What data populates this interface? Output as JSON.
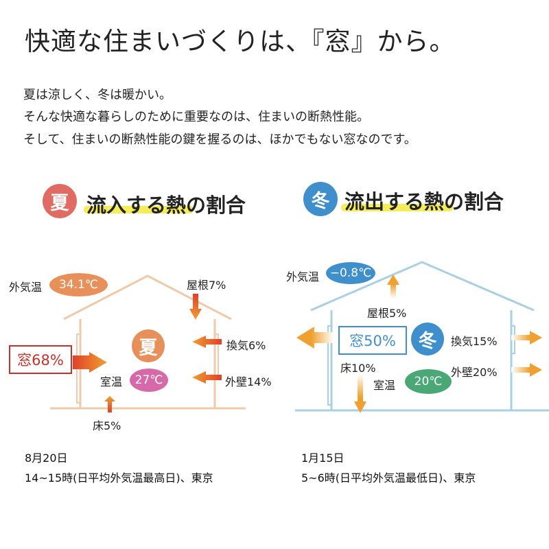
{
  "title": "快適な住まいづくりは、『窓』から。",
  "intro": [
    "夏は涼しく、冬は暖かい。",
    "そんな快適な暮らしのために重要なのは、住まいの断熱性能。",
    "そして、住まいの断熱性能の鍵を握るのは、ほかでもない窓なのです。"
  ],
  "colors": {
    "summer": "#e06b62",
    "winter": "#3f8fcc",
    "summer_house": "#f0c9a8",
    "winter_house": "#a9cfe4",
    "arrow": "#f0a030",
    "highlight": "#f5ec5a"
  },
  "summer": {
    "badge": "夏",
    "heading": "流入する熱の割合",
    "outside_label": "外気温",
    "outside_temp": "34.1℃",
    "room_label": "室温",
    "room_temp": "27℃",
    "center_badge": "夏",
    "window": "窓68%",
    "roof": "屋根7%",
    "ventilation": "換気6%",
    "wall": "外壁14%",
    "floor": "床5%",
    "date": "8月20日",
    "note": "14~15時(日平均外気温最高日)、東京"
  },
  "winter": {
    "badge": "冬",
    "heading": "流出する熱の割合",
    "outside_label": "外気温",
    "outside_temp": "−0.8℃",
    "room_label": "室温",
    "room_temp": "20℃",
    "center_badge": "冬",
    "window": "窓50%",
    "roof": "屋根5%",
    "ventilation": "換気15%",
    "wall": "外壁20%",
    "floor": "床10%",
    "date": "1月15日",
    "note": "5~6時(日平均外気温最低日)、東京"
  }
}
